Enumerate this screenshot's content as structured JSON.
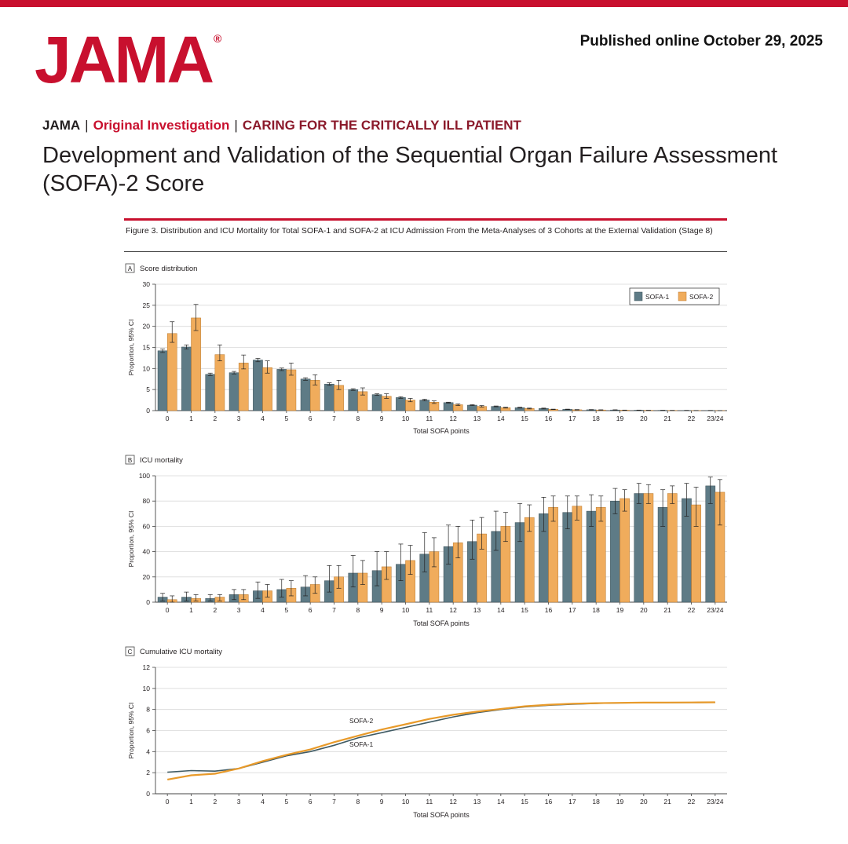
{
  "header": {
    "logo": "JAMA",
    "logo_mark": "®",
    "published": "Published online October 29, 2025",
    "journal": "JAMA",
    "separator": "|",
    "article_type": "Original Investigation",
    "category": "CARING FOR THE CRITICALLY ILL PATIENT",
    "title": "Development and Validation of the Sequential Organ Failure Assessment (SOFA)-2 Score"
  },
  "figure": {
    "caption": "Figure 3. Distribution and ICU Mortality for Total SOFA-1 and SOFA-2 at ICU Admission From the Meta-Analyses of 3 Cohorts at the External Validation (Stage 8)"
  },
  "colors": {
    "sofa1": "#5e7b86",
    "sofa2": "#f0ac5c",
    "sofa1_line": "#3f5a63",
    "sofa2_line": "#e89a2a",
    "brand": "#c8102e"
  },
  "chart_data": [
    {
      "panel": "A",
      "panel_title": "Score distribution",
      "type": "bar",
      "xlabel": "Total SOFA points",
      "ylabel": "Proportion, 95% CI",
      "ylim": [
        0,
        30
      ],
      "yticks": [
        0,
        5,
        10,
        15,
        20,
        25,
        30
      ],
      "legend_position": "top-right",
      "categories": [
        "0",
        "1",
        "2",
        "3",
        "4",
        "5",
        "6",
        "7",
        "8",
        "9",
        "10",
        "11",
        "12",
        "13",
        "14",
        "15",
        "16",
        "17",
        "18",
        "19",
        "20",
        "21",
        "22",
        "23/24"
      ],
      "series": [
        {
          "name": "SOFA-1",
          "values": [
            14.2,
            15.1,
            8.6,
            9.0,
            12.0,
            9.8,
            7.5,
            6.3,
            5.0,
            3.8,
            3.1,
            2.5,
            1.9,
            1.3,
            1.0,
            0.7,
            0.5,
            0.3,
            0.2,
            0.15,
            0.1,
            0.07,
            0.05,
            0.04
          ],
          "ci_low": [
            13.8,
            14.6,
            8.3,
            8.7,
            11.6,
            9.5,
            7.2,
            6.0,
            4.8,
            3.6,
            2.9,
            2.3,
            1.8,
            1.2,
            0.9,
            0.6,
            0.4,
            0.25,
            0.15,
            0.1,
            0.07,
            0.05,
            0.03,
            0.02
          ],
          "ci_high": [
            14.6,
            15.6,
            8.9,
            9.3,
            12.4,
            10.1,
            7.8,
            6.6,
            5.2,
            4.0,
            3.3,
            2.7,
            2.0,
            1.4,
            1.1,
            0.8,
            0.6,
            0.35,
            0.25,
            0.2,
            0.13,
            0.09,
            0.07,
            0.06
          ]
        },
        {
          "name": "SOFA-2",
          "values": [
            18.3,
            22.0,
            13.3,
            11.3,
            10.2,
            9.7,
            7.2,
            6.0,
            4.5,
            3.4,
            2.5,
            2.0,
            1.4,
            1.0,
            0.7,
            0.5,
            0.3,
            0.2,
            0.15,
            0.1,
            0.07,
            0.05,
            0.03,
            0.02
          ],
          "ci_low": [
            16.2,
            19.0,
            11.8,
            9.9,
            8.9,
            8.4,
            6.1,
            5.0,
            3.7,
            2.9,
            2.1,
            1.7,
            1.2,
            0.85,
            0.6,
            0.4,
            0.25,
            0.15,
            0.1,
            0.07,
            0.05,
            0.03,
            0.02,
            0.01
          ],
          "ci_high": [
            21.1,
            25.2,
            15.6,
            13.2,
            11.8,
            11.3,
            8.5,
            7.2,
            5.4,
            4.0,
            2.9,
            2.3,
            1.6,
            1.2,
            0.8,
            0.6,
            0.35,
            0.25,
            0.2,
            0.13,
            0.09,
            0.07,
            0.04,
            0.03
          ]
        }
      ]
    },
    {
      "panel": "B",
      "panel_title": "ICU mortality",
      "type": "bar",
      "xlabel": "Total SOFA points",
      "ylabel": "Proportion, 95% CI",
      "ylim": [
        0,
        100
      ],
      "yticks": [
        0,
        20,
        40,
        60,
        80,
        100
      ],
      "categories": [
        "0",
        "1",
        "2",
        "3",
        "4",
        "5",
        "6",
        "7",
        "8",
        "9",
        "10",
        "11",
        "12",
        "13",
        "14",
        "15",
        "16",
        "17",
        "18",
        "19",
        "20",
        "21",
        "22",
        "23/24"
      ],
      "series": [
        {
          "name": "SOFA-1",
          "values": [
            4,
            4,
            3,
            6,
            9,
            10,
            12,
            17,
            23,
            25,
            30,
            38,
            44,
            48,
            56,
            63,
            70,
            71,
            72,
            80,
            86,
            75,
            82,
            92
          ],
          "ci_low": [
            1,
            1,
            1,
            2,
            3,
            4,
            5,
            8,
            12,
            13,
            17,
            24,
            30,
            34,
            41,
            48,
            56,
            58,
            60,
            70,
            78,
            60,
            68,
            78
          ],
          "ci_high": [
            7,
            8,
            6,
            10,
            16,
            18,
            21,
            29,
            37,
            40,
            46,
            55,
            61,
            65,
            72,
            78,
            83,
            84,
            85,
            90,
            94,
            89,
            94,
            99
          ]
        },
        {
          "name": "SOFA-2",
          "values": [
            2,
            3,
            4,
            6,
            9,
            11,
            14,
            20,
            23,
            28,
            33,
            40,
            47,
            54,
            60,
            67,
            75,
            76,
            75,
            82,
            86,
            86,
            77,
            87
          ],
          "ci_low": [
            0,
            1,
            1,
            2,
            4,
            5,
            7,
            11,
            14,
            18,
            22,
            28,
            35,
            42,
            48,
            56,
            64,
            65,
            64,
            72,
            78,
            78,
            60,
            61
          ],
          "ci_high": [
            5,
            6,
            6,
            10,
            14,
            17,
            20,
            29,
            33,
            40,
            45,
            51,
            60,
            67,
            71,
            77,
            84,
            84,
            84,
            89,
            93,
            92,
            91,
            97
          ]
        }
      ]
    },
    {
      "panel": "C",
      "panel_title": "Cumulative ICU mortality",
      "type": "line",
      "xlabel": "Total SOFA points",
      "ylabel": "Proportion, 95% CI",
      "ylim": [
        0,
        12
      ],
      "yticks": [
        0,
        2,
        4,
        6,
        8,
        10,
        12
      ],
      "categories": [
        "0",
        "1",
        "2",
        "3",
        "4",
        "5",
        "6",
        "7",
        "8",
        "9",
        "10",
        "11",
        "12",
        "13",
        "14",
        "15",
        "16",
        "17",
        "18",
        "19",
        "20",
        "21",
        "22",
        "23/24"
      ],
      "series": [
        {
          "name": "SOFA-1",
          "values": [
            2.05,
            2.2,
            2.15,
            2.4,
            3.0,
            3.6,
            4.0,
            4.6,
            5.3,
            5.8,
            6.3,
            6.8,
            7.3,
            7.7,
            8.0,
            8.25,
            8.4,
            8.5,
            8.58,
            8.62,
            8.64,
            8.65,
            8.66,
            8.67
          ]
        },
        {
          "name": "SOFA-2",
          "values": [
            1.35,
            1.75,
            1.9,
            2.4,
            3.1,
            3.7,
            4.2,
            4.9,
            5.5,
            6.1,
            6.6,
            7.1,
            7.5,
            7.8,
            8.05,
            8.3,
            8.45,
            8.55,
            8.6,
            8.63,
            8.65,
            8.66,
            8.67,
            8.68
          ]
        }
      ],
      "annotations": [
        "SOFA-2",
        "SOFA-1"
      ]
    }
  ]
}
